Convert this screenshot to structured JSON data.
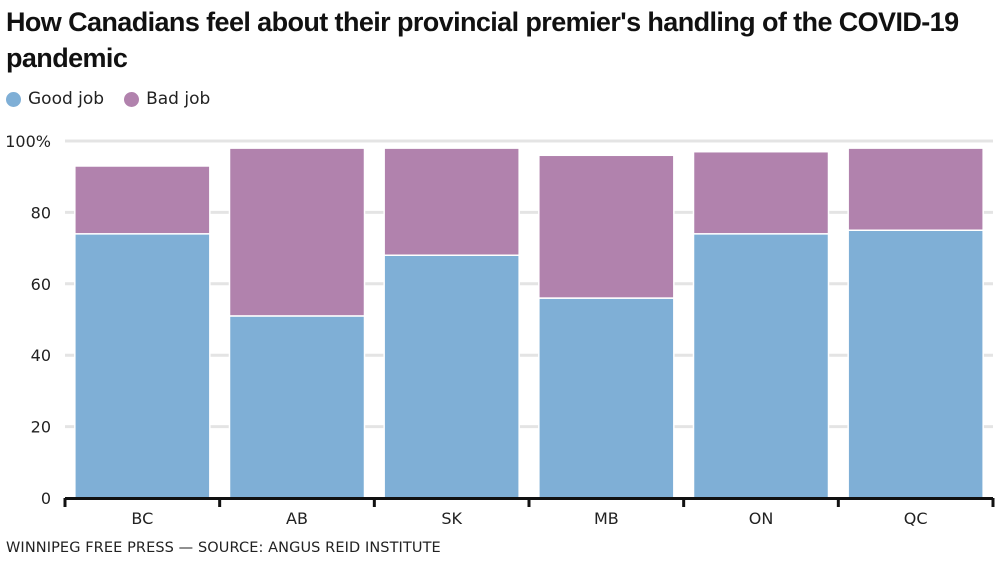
{
  "chart_data": {
    "type": "bar",
    "stacked": true,
    "title": "How Canadians feel about their provincial premier's handling of the COVID-19 pandemic",
    "xlabel": "",
    "ylabel": "",
    "categories": [
      "BC",
      "AB",
      "SK",
      "MB",
      "ON",
      "QC"
    ],
    "series": [
      {
        "name": "Good job",
        "color": "#7fafd6",
        "values": [
          74,
          51,
          68,
          56,
          74,
          75
        ]
      },
      {
        "name": "Bad job",
        "color": "#b182ad",
        "values": [
          19,
          47,
          30,
          40,
          23,
          23
        ]
      }
    ],
    "ylim": [
      0,
      100
    ],
    "yticks": [
      0,
      20,
      40,
      60,
      80,
      100
    ],
    "ytick_labels": [
      "0",
      "20",
      "40",
      "60",
      "80",
      "100%"
    ],
    "grid": true,
    "legend_position": "top-left",
    "source": "WINNIPEG FREE PRESS — SOURCE: ANGUS REID INSTITUTE"
  },
  "colors": {
    "grid": "#e4e4e4",
    "axis": "#111111"
  }
}
